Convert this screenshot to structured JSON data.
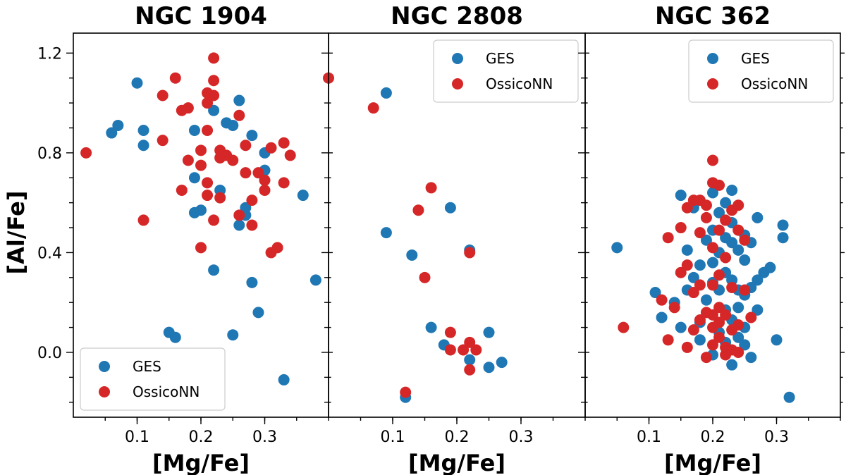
{
  "figure": {
    "ylabel": "[Al/Fe]",
    "colors": {
      "GES": "#1f77b4",
      "OssicoNN": "#d62728"
    }
  },
  "chart_data": [
    {
      "type": "scatter",
      "title": "NGC 1904",
      "xlabel": "[Mg/Fe]",
      "ylabel": "[Al/Fe]",
      "xlim": [
        0.0,
        0.4
      ],
      "ylim": [
        -0.26,
        1.28
      ],
      "xticks": [
        0.1,
        0.2,
        0.3
      ],
      "xtick_labels": [
        "0.1",
        "0.2",
        "0.3"
      ],
      "yticks": [
        0.0,
        0.4,
        0.8,
        1.2
      ],
      "ytick_labels": [
        "0.0",
        "0.4",
        "0.8",
        "1.2"
      ],
      "legend_position": "lower-left",
      "series": [
        {
          "name": "GES",
          "color": "#1f77b4",
          "points": [
            [
              0.06,
              0.88
            ],
            [
              0.07,
              0.91
            ],
            [
              0.1,
              1.08
            ],
            [
              0.11,
              0.89
            ],
            [
              0.11,
              0.83
            ],
            [
              0.19,
              0.89
            ],
            [
              0.19,
              0.7
            ],
            [
              0.19,
              0.56
            ],
            [
              0.2,
              0.57
            ],
            [
              0.22,
              0.97
            ],
            [
              0.22,
              0.33
            ],
            [
              0.23,
              0.65
            ],
            [
              0.24,
              0.92
            ],
            [
              0.25,
              0.91
            ],
            [
              0.26,
              1.01
            ],
            [
              0.26,
              0.51
            ],
            [
              0.27,
              0.55
            ],
            [
              0.27,
              0.58
            ],
            [
              0.28,
              0.87
            ],
            [
              0.28,
              0.28
            ],
            [
              0.29,
              0.16
            ],
            [
              0.3,
              0.8
            ],
            [
              0.3,
              0.73
            ],
            [
              0.33,
              -0.11
            ],
            [
              0.36,
              0.63
            ],
            [
              0.38,
              0.29
            ],
            [
              0.15,
              0.08
            ],
            [
              0.16,
              0.06
            ],
            [
              0.25,
              0.07
            ]
          ]
        },
        {
          "name": "OssicoNN",
          "color": "#d62728",
          "points": [
            [
              0.02,
              0.8
            ],
            [
              0.11,
              0.53
            ],
            [
              0.14,
              1.03
            ],
            [
              0.14,
              0.85
            ],
            [
              0.16,
              1.1
            ],
            [
              0.17,
              0.97
            ],
            [
              0.17,
              0.65
            ],
            [
              0.18,
              0.98
            ],
            [
              0.18,
              0.77
            ],
            [
              0.2,
              0.81
            ],
            [
              0.2,
              0.75
            ],
            [
              0.2,
              0.42
            ],
            [
              0.21,
              1.04
            ],
            [
              0.21,
              1.0
            ],
            [
              0.21,
              0.89
            ],
            [
              0.21,
              0.68
            ],
            [
              0.21,
              0.63
            ],
            [
              0.22,
              1.18
            ],
            [
              0.22,
              1.09
            ],
            [
              0.22,
              1.03
            ],
            [
              0.22,
              0.53
            ],
            [
              0.23,
              0.81
            ],
            [
              0.23,
              0.78
            ],
            [
              0.23,
              0.62
            ],
            [
              0.24,
              0.79
            ],
            [
              0.25,
              0.77
            ],
            [
              0.26,
              0.95
            ],
            [
              0.26,
              0.55
            ],
            [
              0.27,
              0.83
            ],
            [
              0.27,
              0.72
            ],
            [
              0.28,
              0.61
            ],
            [
              0.28,
              0.51
            ],
            [
              0.29,
              0.72
            ],
            [
              0.3,
              0.69
            ],
            [
              0.3,
              0.65
            ],
            [
              0.31,
              0.82
            ],
            [
              0.31,
              0.4
            ],
            [
              0.32,
              0.42
            ],
            [
              0.33,
              0.68
            ],
            [
              0.33,
              0.84
            ],
            [
              0.34,
              0.79
            ]
          ]
        }
      ]
    },
    {
      "type": "scatter",
      "title": "NGC 2808",
      "xlabel": "[Mg/Fe]",
      "ylabel": "",
      "xlim": [
        0.0,
        0.4
      ],
      "ylim": [
        -0.26,
        1.28
      ],
      "xticks": [
        0.1,
        0.2,
        0.3
      ],
      "xtick_labels": [
        "0.1",
        "0.2",
        "0.3"
      ],
      "yticks": [
        0.0,
        0.4,
        0.8,
        1.2
      ],
      "ytick_labels": [],
      "legend_position": "upper-right",
      "series": [
        {
          "name": "GES",
          "color": "#1f77b4",
          "points": [
            [
              0.09,
              1.04
            ],
            [
              0.09,
              0.48
            ],
            [
              0.13,
              0.39
            ],
            [
              0.19,
              0.58
            ],
            [
              0.22,
              0.41
            ],
            [
              0.16,
              0.1
            ],
            [
              0.18,
              0.03
            ],
            [
              0.22,
              -0.03
            ],
            [
              0.25,
              0.08
            ],
            [
              0.25,
              -0.06
            ],
            [
              0.27,
              -0.04
            ],
            [
              0.12,
              -0.18
            ]
          ]
        },
        {
          "name": "OssicoNN",
          "color": "#d62728",
          "points": [
            [
              0.0,
              1.1
            ],
            [
              0.07,
              0.98
            ],
            [
              0.14,
              0.57
            ],
            [
              0.16,
              0.66
            ],
            [
              0.15,
              0.3
            ],
            [
              0.22,
              0.4
            ],
            [
              0.19,
              0.08
            ],
            [
              0.19,
              0.01
            ],
            [
              0.21,
              0.01
            ],
            [
              0.22,
              0.04
            ],
            [
              0.22,
              -0.07
            ],
            [
              0.23,
              0.01
            ],
            [
              0.12,
              -0.16
            ]
          ]
        }
      ]
    },
    {
      "type": "scatter",
      "title": "NGC 362",
      "xlabel": "[Mg/Fe]",
      "ylabel": "",
      "xlim": [
        0.0,
        0.4
      ],
      "ylim": [
        -0.26,
        1.28
      ],
      "xticks": [
        0.1,
        0.2,
        0.3
      ],
      "xtick_labels": [
        "0.1",
        "0.2",
        "0.3"
      ],
      "yticks": [
        0.0,
        0.4,
        0.8,
        1.2
      ],
      "ytick_labels": [],
      "legend_position": "upper-right",
      "series": [
        {
          "name": "GES",
          "color": "#1f77b4",
          "points": [
            [
              0.05,
              0.42
            ],
            [
              0.11,
              0.24
            ],
            [
              0.12,
              0.14
            ],
            [
              0.14,
              0.2
            ],
            [
              0.15,
              0.63
            ],
            [
              0.15,
              0.1
            ],
            [
              0.16,
              0.25
            ],
            [
              0.16,
              0.41
            ],
            [
              0.17,
              0.58
            ],
            [
              0.17,
              0.3
            ],
            [
              0.18,
              0.35
            ],
            [
              0.18,
              0.12
            ],
            [
              0.19,
              0.45
            ],
            [
              0.19,
              0.21
            ],
            [
              0.2,
              0.64
            ],
            [
              0.2,
              0.49
            ],
            [
              0.2,
              0.36
            ],
            [
              0.2,
              0.28
            ],
            [
              0.2,
              -0.01
            ],
            [
              0.21,
              0.56
            ],
            [
              0.21,
              0.4
            ],
            [
              0.21,
              0.25
            ],
            [
              0.21,
              0.08
            ],
            [
              0.22,
              0.6
            ],
            [
              0.22,
              0.46
            ],
            [
              0.22,
              0.32
            ],
            [
              0.22,
              0.17
            ],
            [
              0.22,
              0.04
            ],
            [
              0.23,
              0.65
            ],
            [
              0.23,
              0.52
            ],
            [
              0.23,
              0.44
            ],
            [
              0.23,
              0.29
            ],
            [
              0.23,
              0.13
            ],
            [
              0.23,
              -0.05
            ],
            [
              0.24,
              0.41
            ],
            [
              0.24,
              0.25
            ],
            [
              0.24,
              0.06
            ],
            [
              0.25,
              0.47
            ],
            [
              0.25,
              0.37
            ],
            [
              0.25,
              0.23
            ],
            [
              0.25,
              0.1
            ],
            [
              0.25,
              0.03
            ],
            [
              0.26,
              0.44
            ],
            [
              0.26,
              0.26
            ],
            [
              0.26,
              -0.02
            ],
            [
              0.27,
              0.54
            ],
            [
              0.27,
              0.29
            ],
            [
              0.27,
              0.17
            ],
            [
              0.28,
              0.32
            ],
            [
              0.29,
              0.34
            ],
            [
              0.3,
              0.05
            ],
            [
              0.31,
              0.51
            ],
            [
              0.31,
              0.46
            ],
            [
              0.32,
              -0.18
            ],
            [
              0.18,
              0.05
            ],
            [
              0.24,
              0.18
            ]
          ]
        },
        {
          "name": "OssicoNN",
          "color": "#d62728",
          "points": [
            [
              0.06,
              0.1
            ],
            [
              0.12,
              0.21
            ],
            [
              0.13,
              0.46
            ],
            [
              0.13,
              0.05
            ],
            [
              0.14,
              0.18
            ],
            [
              0.15,
              0.32
            ],
            [
              0.15,
              0.5
            ],
            [
              0.16,
              0.58
            ],
            [
              0.16,
              0.35
            ],
            [
              0.16,
              0.02
            ],
            [
              0.17,
              0.61
            ],
            [
              0.17,
              0.24
            ],
            [
              0.17,
              0.09
            ],
            [
              0.18,
              0.61
            ],
            [
              0.18,
              0.27
            ],
            [
              0.18,
              0.48
            ],
            [
              0.18,
              0.13
            ],
            [
              0.19,
              0.59
            ],
            [
              0.19,
              0.16
            ],
            [
              0.19,
              -0.02
            ],
            [
              0.2,
              0.68
            ],
            [
              0.2,
              0.77
            ],
            [
              0.2,
              0.42
            ],
            [
              0.2,
              0.27
            ],
            [
              0.2,
              0.1
            ],
            [
              0.2,
              0.03
            ],
            [
              0.21,
              0.67
            ],
            [
              0.21,
              0.49
            ],
            [
              0.21,
              0.31
            ],
            [
              0.21,
              0.18
            ],
            [
              0.21,
              0.06
            ],
            [
              0.22,
              0.53
            ],
            [
              0.22,
              0.38
            ],
            [
              0.22,
              0.15
            ],
            [
              0.22,
              0.02
            ],
            [
              0.23,
              0.57
            ],
            [
              0.23,
              0.26
            ],
            [
              0.23,
              0.09
            ],
            [
              0.24,
              0.59
            ],
            [
              0.24,
              0.49
            ],
            [
              0.24,
              0.11
            ],
            [
              0.24,
              0.0
            ],
            [
              0.25,
              0.45
            ],
            [
              0.25,
              0.25
            ],
            [
              0.26,
              0.14
            ],
            [
              0.19,
              0.54
            ],
            [
              0.23,
              0.01
            ],
            [
              0.21,
              0.12
            ],
            [
              0.22,
              -0.01
            ],
            [
              0.2,
              0.15
            ]
          ]
        }
      ]
    }
  ]
}
